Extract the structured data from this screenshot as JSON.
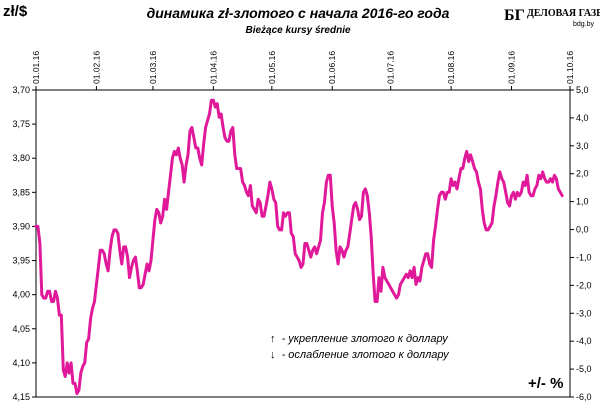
{
  "chart_data": {
    "type": "line",
    "title": "динамика zł-злотого с начала 2016-го года",
    "subtitle": "Bieżące kursy średnie",
    "ylabel_left": "zł/$",
    "ylabel_right": "+/- %",
    "left_axis": {
      "range": [
        3.7,
        4.15
      ],
      "inverted": true,
      "ticks": [
        "3,70",
        "3,75",
        "3,80",
        "3,85",
        "3,90",
        "3,95",
        "4,00",
        "4,05",
        "4,10",
        "4,15"
      ]
    },
    "right_axis": {
      "range": [
        5.0,
        -6.0
      ],
      "ticks": [
        "5,0",
        "4,0",
        "3,0",
        "2,0",
        "1,0",
        "0,0",
        "-1,0",
        "-2,0",
        "-3,0",
        "-4,0",
        "-5,0",
        "-6,0"
      ]
    },
    "x_axis": {
      "date_labels": [
        "01.01.16",
        "01.02.16",
        "01.03.16",
        "01.04.16",
        "01.05.16",
        "01.06.16",
        "01.07.16",
        "01.08.16",
        "01.09.16",
        "01.10.16"
      ],
      "date_day_offsets": [
        0,
        31,
        60,
        91,
        121,
        152,
        182,
        213,
        244,
        274
      ],
      "total_days": 274
    },
    "grid": false,
    "series": [
      {
        "color": "#e0199a",
        "points": [
          [
            0,
            3.9
          ],
          [
            1,
            3.9
          ],
          [
            2,
            3.925
          ],
          [
            3,
            4.0
          ],
          [
            4,
            4.005
          ],
          [
            5,
            4.005
          ],
          [
            6,
            3.995
          ],
          [
            7,
            3.995
          ],
          [
            8,
            4.01
          ],
          [
            9,
            4.01
          ],
          [
            10,
            3.995
          ],
          [
            11,
            4.005
          ],
          [
            12,
            4.03
          ],
          [
            13,
            4.03
          ],
          [
            14,
            4.11
          ],
          [
            15,
            4.12
          ],
          [
            16,
            4.1
          ],
          [
            17,
            4.115
          ],
          [
            18,
            4.1
          ],
          [
            19,
            4.13
          ],
          [
            20,
            4.13
          ],
          [
            21,
            4.145
          ],
          [
            22,
            4.14
          ],
          [
            23,
            4.115
          ],
          [
            24,
            4.105
          ],
          [
            25,
            4.1
          ],
          [
            26,
            4.07
          ],
          [
            27,
            4.065
          ],
          [
            28,
            4.035
          ],
          [
            29,
            4.02
          ],
          [
            30,
            4.01
          ],
          [
            31,
            3.985
          ],
          [
            32,
            3.96
          ],
          [
            33,
            3.935
          ],
          [
            34,
            3.935
          ],
          [
            35,
            3.94
          ],
          [
            36,
            3.955
          ],
          [
            37,
            3.965
          ],
          [
            38,
            3.935
          ],
          [
            39,
            3.915
          ],
          [
            40,
            3.905
          ],
          [
            41,
            3.905
          ],
          [
            42,
            3.91
          ],
          [
            43,
            3.935
          ],
          [
            44,
            3.955
          ],
          [
            45,
            3.93
          ],
          [
            46,
            3.93
          ],
          [
            47,
            3.945
          ],
          [
            48,
            3.975
          ],
          [
            49,
            3.96
          ],
          [
            50,
            3.95
          ],
          [
            51,
            3.945
          ],
          [
            52,
            3.965
          ],
          [
            53,
            3.99
          ],
          [
            54,
            3.99
          ],
          [
            55,
            3.985
          ],
          [
            56,
            3.97
          ],
          [
            57,
            3.955
          ],
          [
            58,
            3.965
          ],
          [
            59,
            3.95
          ],
          [
            60,
            3.92
          ],
          [
            61,
            3.89
          ],
          [
            62,
            3.875
          ],
          [
            63,
            3.88
          ],
          [
            64,
            3.895
          ],
          [
            65,
            3.885
          ],
          [
            66,
            3.86
          ],
          [
            67,
            3.875
          ],
          [
            68,
            3.85
          ],
          [
            69,
            3.825
          ],
          [
            70,
            3.8
          ],
          [
            71,
            3.79
          ],
          [
            72,
            3.795
          ],
          [
            73,
            3.785
          ],
          [
            74,
            3.8
          ],
          [
            75,
            3.81
          ],
          [
            76,
            3.835
          ],
          [
            77,
            3.81
          ],
          [
            78,
            3.795
          ],
          [
            79,
            3.76
          ],
          [
            80,
            3.755
          ],
          [
            81,
            3.77
          ],
          [
            82,
            3.785
          ],
          [
            83,
            3.785
          ],
          [
            84,
            3.8
          ],
          [
            85,
            3.81
          ],
          [
            86,
            3.78
          ],
          [
            87,
            3.755
          ],
          [
            88,
            3.745
          ],
          [
            89,
            3.735
          ],
          [
            90,
            3.715
          ],
          [
            91,
            3.715
          ],
          [
            92,
            3.725
          ],
          [
            93,
            3.72
          ],
          [
            94,
            3.74
          ],
          [
            95,
            3.735
          ],
          [
            96,
            3.755
          ],
          [
            97,
            3.77
          ],
          [
            98,
            3.775
          ],
          [
            99,
            3.775
          ],
          [
            100,
            3.76
          ],
          [
            101,
            3.755
          ],
          [
            102,
            3.795
          ],
          [
            103,
            3.815
          ],
          [
            104,
            3.815
          ],
          [
            105,
            3.815
          ],
          [
            106,
            3.835
          ],
          [
            107,
            3.84
          ],
          [
            108,
            3.85
          ],
          [
            109,
            3.855
          ],
          [
            110,
            3.84
          ],
          [
            111,
            3.87
          ],
          [
            112,
            3.875
          ],
          [
            113,
            3.88
          ],
          [
            114,
            3.86
          ],
          [
            115,
            3.865
          ],
          [
            116,
            3.885
          ],
          [
            117,
            3.885
          ],
          [
            118,
            3.87
          ],
          [
            119,
            3.855
          ],
          [
            120,
            3.835
          ],
          [
            121,
            3.845
          ],
          [
            122,
            3.86
          ],
          [
            123,
            3.865
          ],
          [
            124,
            3.9
          ],
          [
            125,
            3.905
          ],
          [
            126,
            3.905
          ],
          [
            127,
            3.88
          ],
          [
            128,
            3.885
          ],
          [
            129,
            3.88
          ],
          [
            130,
            3.88
          ],
          [
            131,
            3.91
          ],
          [
            132,
            3.915
          ],
          [
            133,
            3.94
          ],
          [
            134,
            3.945
          ],
          [
            135,
            3.95
          ],
          [
            136,
            3.96
          ],
          [
            137,
            3.955
          ],
          [
            138,
            3.925
          ],
          [
            139,
            3.925
          ],
          [
            140,
            3.935
          ],
          [
            141,
            3.945
          ],
          [
            142,
            3.935
          ],
          [
            143,
            3.93
          ],
          [
            144,
            3.94
          ],
          [
            145,
            3.93
          ],
          [
            146,
            3.92
          ],
          [
            147,
            3.88
          ],
          [
            148,
            3.865
          ],
          [
            149,
            3.835
          ],
          [
            150,
            3.825
          ],
          [
            151,
            3.825
          ],
          [
            152,
            3.87
          ],
          [
            153,
            3.895
          ],
          [
            154,
            3.935
          ],
          [
            155,
            3.955
          ],
          [
            156,
            3.93
          ],
          [
            157,
            3.935
          ],
          [
            158,
            3.945
          ],
          [
            159,
            3.935
          ],
          [
            160,
            3.93
          ],
          [
            161,
            3.91
          ],
          [
            162,
            3.89
          ],
          [
            163,
            3.87
          ],
          [
            164,
            3.865
          ],
          [
            165,
            3.875
          ],
          [
            166,
            3.89
          ],
          [
            167,
            3.885
          ],
          [
            168,
            3.85
          ],
          [
            169,
            3.845
          ],
          [
            170,
            3.855
          ],
          [
            171,
            3.88
          ],
          [
            172,
            3.915
          ],
          [
            173,
            3.97
          ],
          [
            174,
            4.01
          ],
          [
            175,
            4.01
          ],
          [
            176,
            3.975
          ],
          [
            177,
            3.995
          ],
          [
            178,
            3.96
          ],
          [
            179,
            3.975
          ],
          [
            180,
            3.98
          ],
          [
            181,
            3.985
          ],
          [
            182,
            3.99
          ],
          [
            183,
            3.995
          ],
          [
            184,
            4.0
          ],
          [
            185,
            4.005
          ],
          [
            186,
            4.0
          ],
          [
            187,
            3.985
          ],
          [
            188,
            3.98
          ],
          [
            189,
            3.975
          ],
          [
            190,
            3.97
          ],
          [
            191,
            3.975
          ],
          [
            192,
            3.965
          ],
          [
            193,
            3.975
          ],
          [
            194,
            3.96
          ],
          [
            195,
            3.985
          ],
          [
            196,
            3.975
          ],
          [
            197,
            3.98
          ],
          [
            198,
            3.96
          ],
          [
            199,
            3.95
          ],
          [
            200,
            3.94
          ],
          [
            201,
            3.94
          ],
          [
            202,
            3.955
          ],
          [
            203,
            3.96
          ],
          [
            204,
            3.92
          ],
          [
            205,
            3.9
          ],
          [
            206,
            3.875
          ],
          [
            207,
            3.855
          ],
          [
            208,
            3.85
          ],
          [
            209,
            3.85
          ],
          [
            210,
            3.86
          ],
          [
            211,
            3.85
          ],
          [
            212,
            3.85
          ],
          [
            213,
            3.83
          ],
          [
            214,
            3.84
          ],
          [
            215,
            3.835
          ],
          [
            216,
            3.845
          ],
          [
            217,
            3.83
          ],
          [
            218,
            3.815
          ],
          [
            219,
            3.815
          ],
          [
            220,
            3.8
          ],
          [
            221,
            3.79
          ],
          [
            222,
            3.805
          ],
          [
            223,
            3.795
          ],
          [
            224,
            3.805
          ],
          [
            225,
            3.815
          ],
          [
            226,
            3.82
          ],
          [
            227,
            3.835
          ],
          [
            228,
            3.845
          ],
          [
            229,
            3.875
          ],
          [
            230,
            3.895
          ],
          [
            231,
            3.905
          ],
          [
            232,
            3.905
          ],
          [
            233,
            3.9
          ],
          [
            234,
            3.895
          ],
          [
            235,
            3.87
          ],
          [
            236,
            3.855
          ],
          [
            237,
            3.835
          ],
          [
            238,
            3.82
          ],
          [
            239,
            3.83
          ],
          [
            240,
            3.835
          ],
          [
            241,
            3.85
          ],
          [
            242,
            3.865
          ],
          [
            243,
            3.87
          ],
          [
            244,
            3.855
          ],
          [
            245,
            3.85
          ],
          [
            246,
            3.86
          ],
          [
            247,
            3.85
          ],
          [
            248,
            3.855
          ],
          [
            249,
            3.85
          ],
          [
            250,
            3.835
          ],
          [
            251,
            3.84
          ],
          [
            252,
            3.825
          ],
          [
            253,
            3.85
          ],
          [
            254,
            3.855
          ],
          [
            255,
            3.855
          ],
          [
            256,
            3.845
          ],
          [
            257,
            3.84
          ],
          [
            258,
            3.825
          ],
          [
            259,
            3.83
          ],
          [
            260,
            3.82
          ],
          [
            261,
            3.83
          ],
          [
            262,
            3.835
          ],
          [
            263,
            3.835
          ],
          [
            264,
            3.83
          ],
          [
            265,
            3.835
          ],
          [
            266,
            3.825
          ],
          [
            267,
            3.83
          ],
          [
            268,
            3.845
          ],
          [
            269,
            3.85
          ],
          [
            270,
            3.855
          ]
        ]
      }
    ],
    "legend_notes": [
      {
        "arrow": "↑",
        "text": "- укрепление злотого к доллару"
      },
      {
        "arrow": "↓",
        "text": "- ослабление злотого к доллару"
      }
    ]
  },
  "logo": {
    "mark": "БГ",
    "name": "ДЕЛОВАЯ ГАЗЕТА",
    "site": "bdg.by"
  }
}
